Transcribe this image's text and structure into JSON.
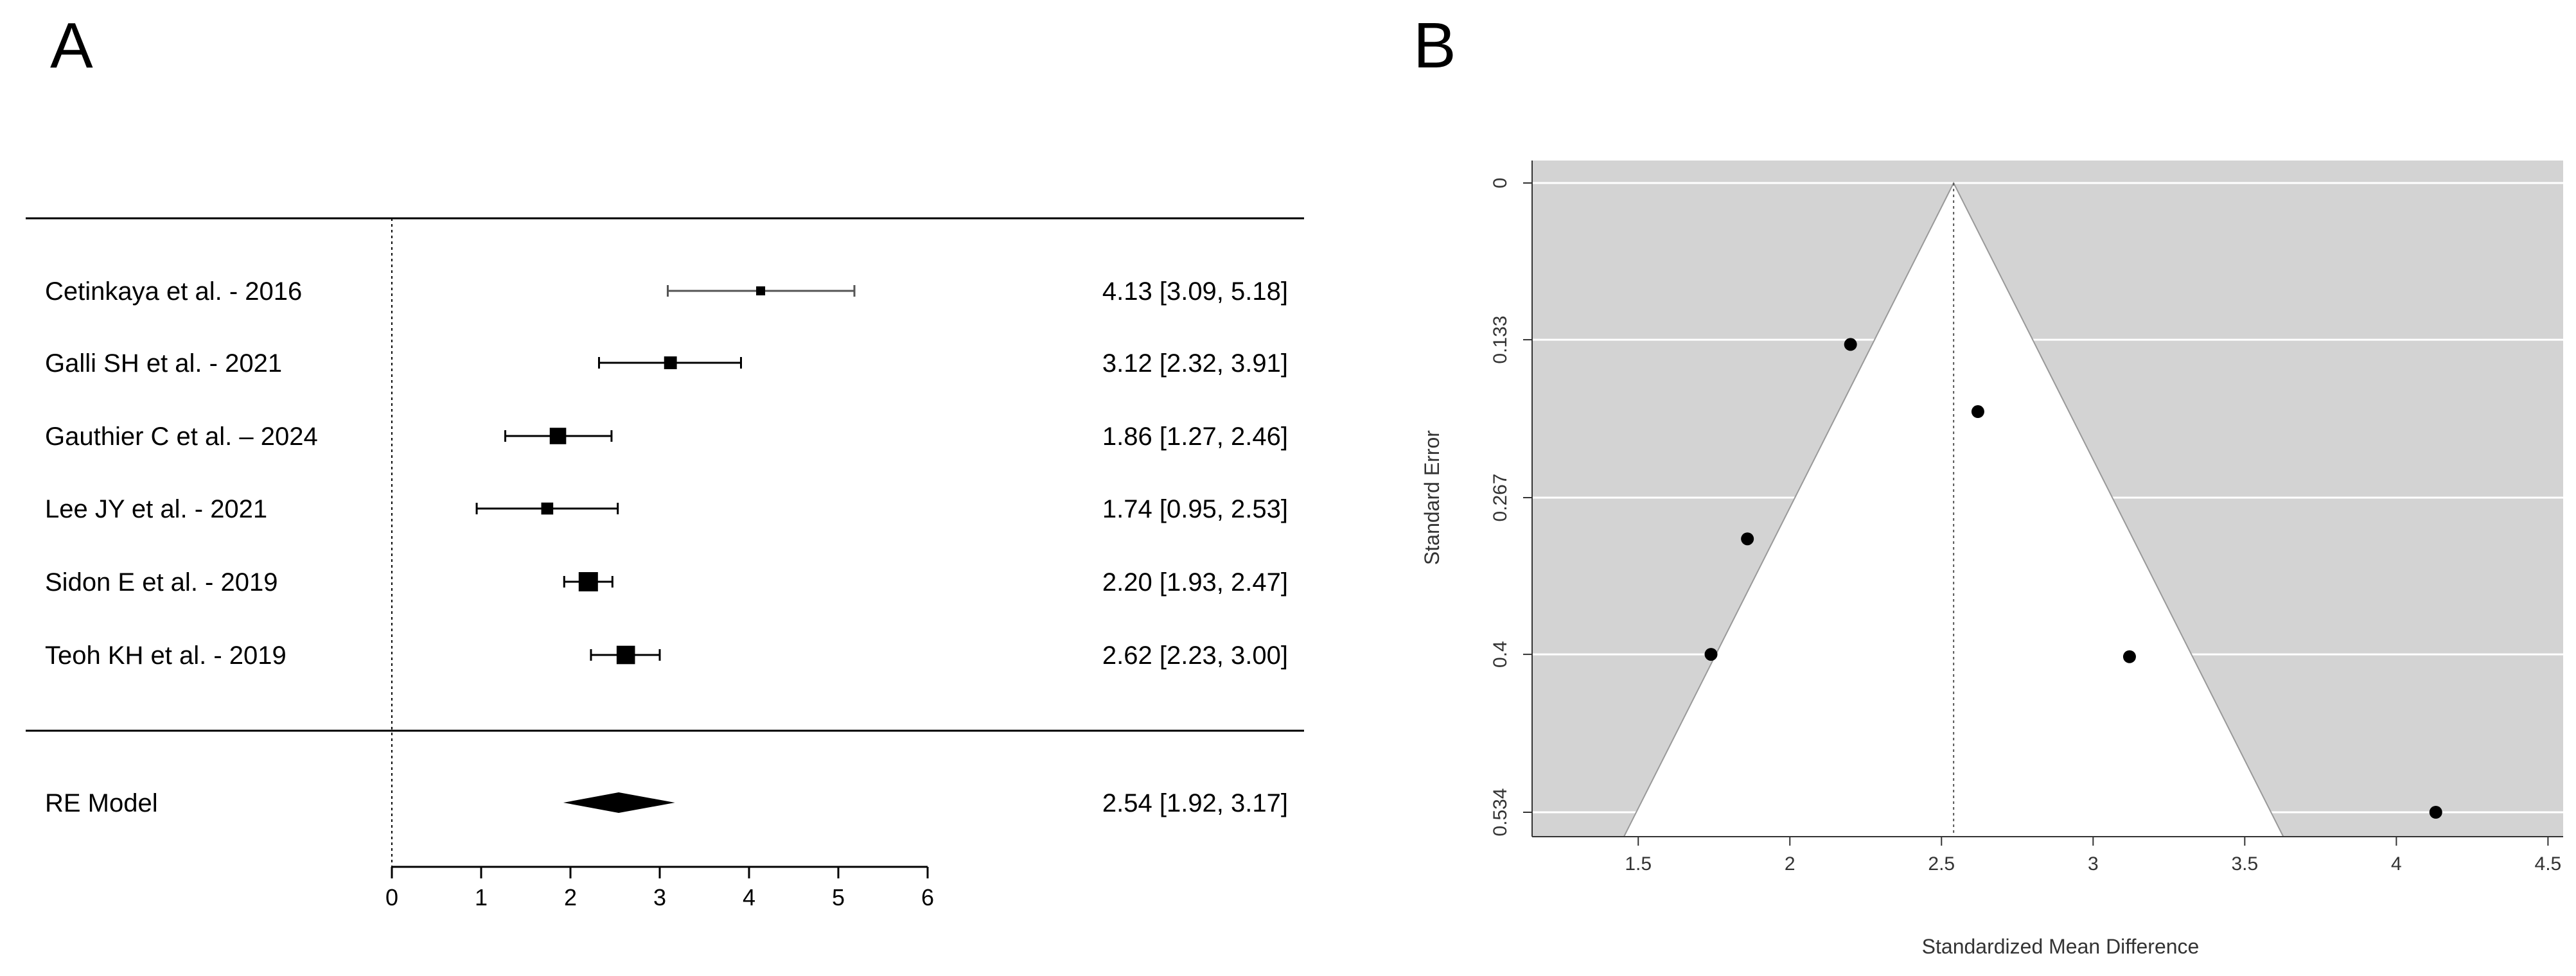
{
  "panels": {
    "a_label": "A",
    "b_label": "B"
  },
  "chart_data": [
    {
      "type": "forest",
      "panel": "A",
      "title": "",
      "xlabel": "",
      "ylabel": "",
      "xlim": [
        0,
        6
      ],
      "x_ticks": [
        0,
        1,
        2,
        3,
        4,
        5,
        6
      ],
      "x_tick_labels": [
        "0",
        "1",
        "2",
        "3",
        "4",
        "5",
        "6"
      ],
      "reference_line": 0,
      "studies": [
        {
          "label": "Cetinkaya et al. - 2016",
          "estimate": 4.13,
          "lower": 3.09,
          "upper": 5.18,
          "text": "4.13 [3.09, 5.18]",
          "weight": 1
        },
        {
          "label": "Galli SH et al. - 2021",
          "estimate": 3.12,
          "lower": 2.32,
          "upper": 3.91,
          "text": "3.12 [2.32, 3.91]",
          "weight": 3
        },
        {
          "label": "Gauthier C et al. – 2024",
          "estimate": 1.86,
          "lower": 1.27,
          "upper": 2.46,
          "text": "1.86 [1.27, 2.46]",
          "weight": 6
        },
        {
          "label": "Lee JY et al. - 2021",
          "estimate": 1.74,
          "lower": 0.95,
          "upper": 2.53,
          "text": "1.74 [0.95, 2.53]",
          "weight": 2.5
        },
        {
          "label": "Sidon E et al. - 2019",
          "estimate": 2.2,
          "lower": 1.93,
          "upper": 2.47,
          "text": "2.20 [1.93, 2.47]",
          "weight": 9
        },
        {
          "label": "Teoh KH et al. - 2019",
          "estimate": 2.62,
          "lower": 2.23,
          "upper": 3.0,
          "text": "2.62 [2.23, 3.00]",
          "weight": 8
        }
      ],
      "summary": {
        "label": "RE Model",
        "estimate": 2.54,
        "lower": 1.92,
        "upper": 3.17,
        "text": "2.54 [1.92, 3.17]"
      }
    },
    {
      "type": "funnel",
      "panel": "B",
      "title": "",
      "xlabel": "Standardized Mean Difference",
      "ylabel": "Standard Error",
      "xlim": [
        1.15,
        4.55
      ],
      "ylim": [
        0,
        0.555
      ],
      "x_ticks": [
        1.5,
        2,
        2.5,
        3,
        3.5,
        4,
        4.5
      ],
      "x_tick_labels": [
        "1.5",
        "2",
        "2.5",
        "3",
        "3.5",
        "4",
        "4.5"
      ],
      "y_ticks": [
        0,
        0.133,
        0.267,
        0.4,
        0.534
      ],
      "y_tick_labels": [
        "0",
        "0.133",
        "0.267",
        "0.4",
        "0.534"
      ],
      "center": 2.54,
      "points": [
        {
          "x": 4.13,
          "y": 0.534
        },
        {
          "x": 3.12,
          "y": 0.402
        },
        {
          "x": 1.86,
          "y": 0.302
        },
        {
          "x": 1.74,
          "y": 0.4
        },
        {
          "x": 2.2,
          "y": 0.137
        },
        {
          "x": 2.62,
          "y": 0.194
        }
      ],
      "background_color": "#d3d3d3",
      "funnel_color": "#ffffff"
    }
  ]
}
